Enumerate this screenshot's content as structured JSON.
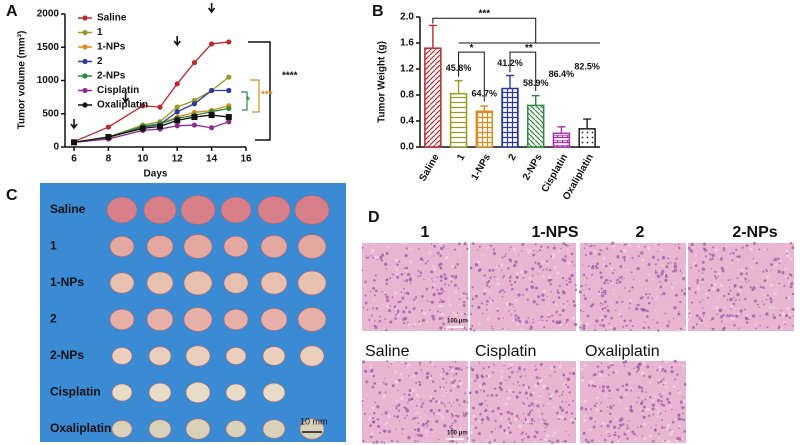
{
  "chart_data": [
    {
      "type": "line",
      "panel": "A",
      "xlabel": "Days",
      "ylabel": "Tumor volume (mm³)",
      "x": [
        6,
        8,
        10,
        11,
        12,
        13,
        14,
        15
      ],
      "series": [
        {
          "name": "Saline",
          "color": "#c0272d",
          "values": [
            80,
            300,
            620,
            600,
            950,
            1270,
            1550,
            1580
          ]
        },
        {
          "name": "1",
          "color": "#9a9a22",
          "values": [
            70,
            150,
            330,
            380,
            600,
            700,
            850,
            1050
          ]
        },
        {
          "name": "1-NPs",
          "color": "#e08a1e",
          "values": [
            70,
            140,
            300,
            350,
            450,
            520,
            550,
            620
          ]
        },
        {
          "name": "2",
          "color": "#2a3aa0",
          "values": [
            70,
            150,
            300,
            340,
            530,
            650,
            850,
            850
          ]
        },
        {
          "name": "2-NPs",
          "color": "#2e8b3a",
          "values": [
            70,
            150,
            310,
            350,
            430,
            480,
            530,
            580
          ]
        },
        {
          "name": "Cisplatin",
          "color": "#8e2a8e",
          "values": [
            70,
            120,
            250,
            270,
            320,
            330,
            290,
            380
          ]
        },
        {
          "name": "Oxaliplatin",
          "color": "#111111",
          "values": [
            70,
            150,
            280,
            310,
            400,
            450,
            480,
            450
          ]
        }
      ],
      "arrows_x": [
        6,
        9,
        12,
        14
      ],
      "significance": [
        "****",
        "***",
        "*"
      ],
      "xlim": [
        6,
        16
      ],
      "xticks": [
        6,
        8,
        10,
        12,
        14,
        16
      ],
      "ylim": [
        0,
        2000
      ],
      "yticks": [
        0,
        500,
        1000,
        1500,
        2000
      ]
    },
    {
      "type": "bar",
      "panel": "B",
      "ylabel": "Tumor Weight (g)",
      "categories": [
        "Saline",
        "1",
        "1-NPs",
        "2",
        "2-NPs",
        "Cisplatin",
        "Oxaliplatin"
      ],
      "values": [
        1.52,
        0.82,
        0.55,
        0.9,
        0.64,
        0.21,
        0.28
      ],
      "errors": [
        0.35,
        0.2,
        0.08,
        0.2,
        0.15,
        0.1,
        0.15
      ],
      "colors": [
        "#c0272d",
        "#9a9a22",
        "#e08a1e",
        "#2a3aa0",
        "#2e8b3a",
        "#b02ab0",
        "#222222"
      ],
      "annotations": [
        null,
        "45.8%",
        "64.7%",
        "41.2%",
        "58.9%",
        "86.4%",
        "82.5%"
      ],
      "significance": [
        "***",
        "*",
        "**"
      ],
      "ylim": [
        0,
        2.0
      ],
      "yticks": [
        {
          "value": 0,
          "label": "0.0"
        },
        0.4,
        0.8,
        1.2,
        1.6,
        {
          "value": 2.0,
          "label": "2.0"
        }
      ]
    }
  ],
  "panel_c": {
    "letter": "C",
    "rows": [
      "Saline",
      "1",
      "1-NPs",
      "2",
      "2-NPs",
      "Cisplatin",
      "Oxaliplatin"
    ],
    "scale": "10 mm"
  },
  "panel_d": {
    "letter": "D",
    "top_labels": [
      "1",
      "1-NPS",
      "2",
      "2-NPs"
    ],
    "bottom_labels": [
      "Saline",
      "Cisplatin",
      "Oxaliplatin"
    ],
    "scale": "100 μm"
  }
}
